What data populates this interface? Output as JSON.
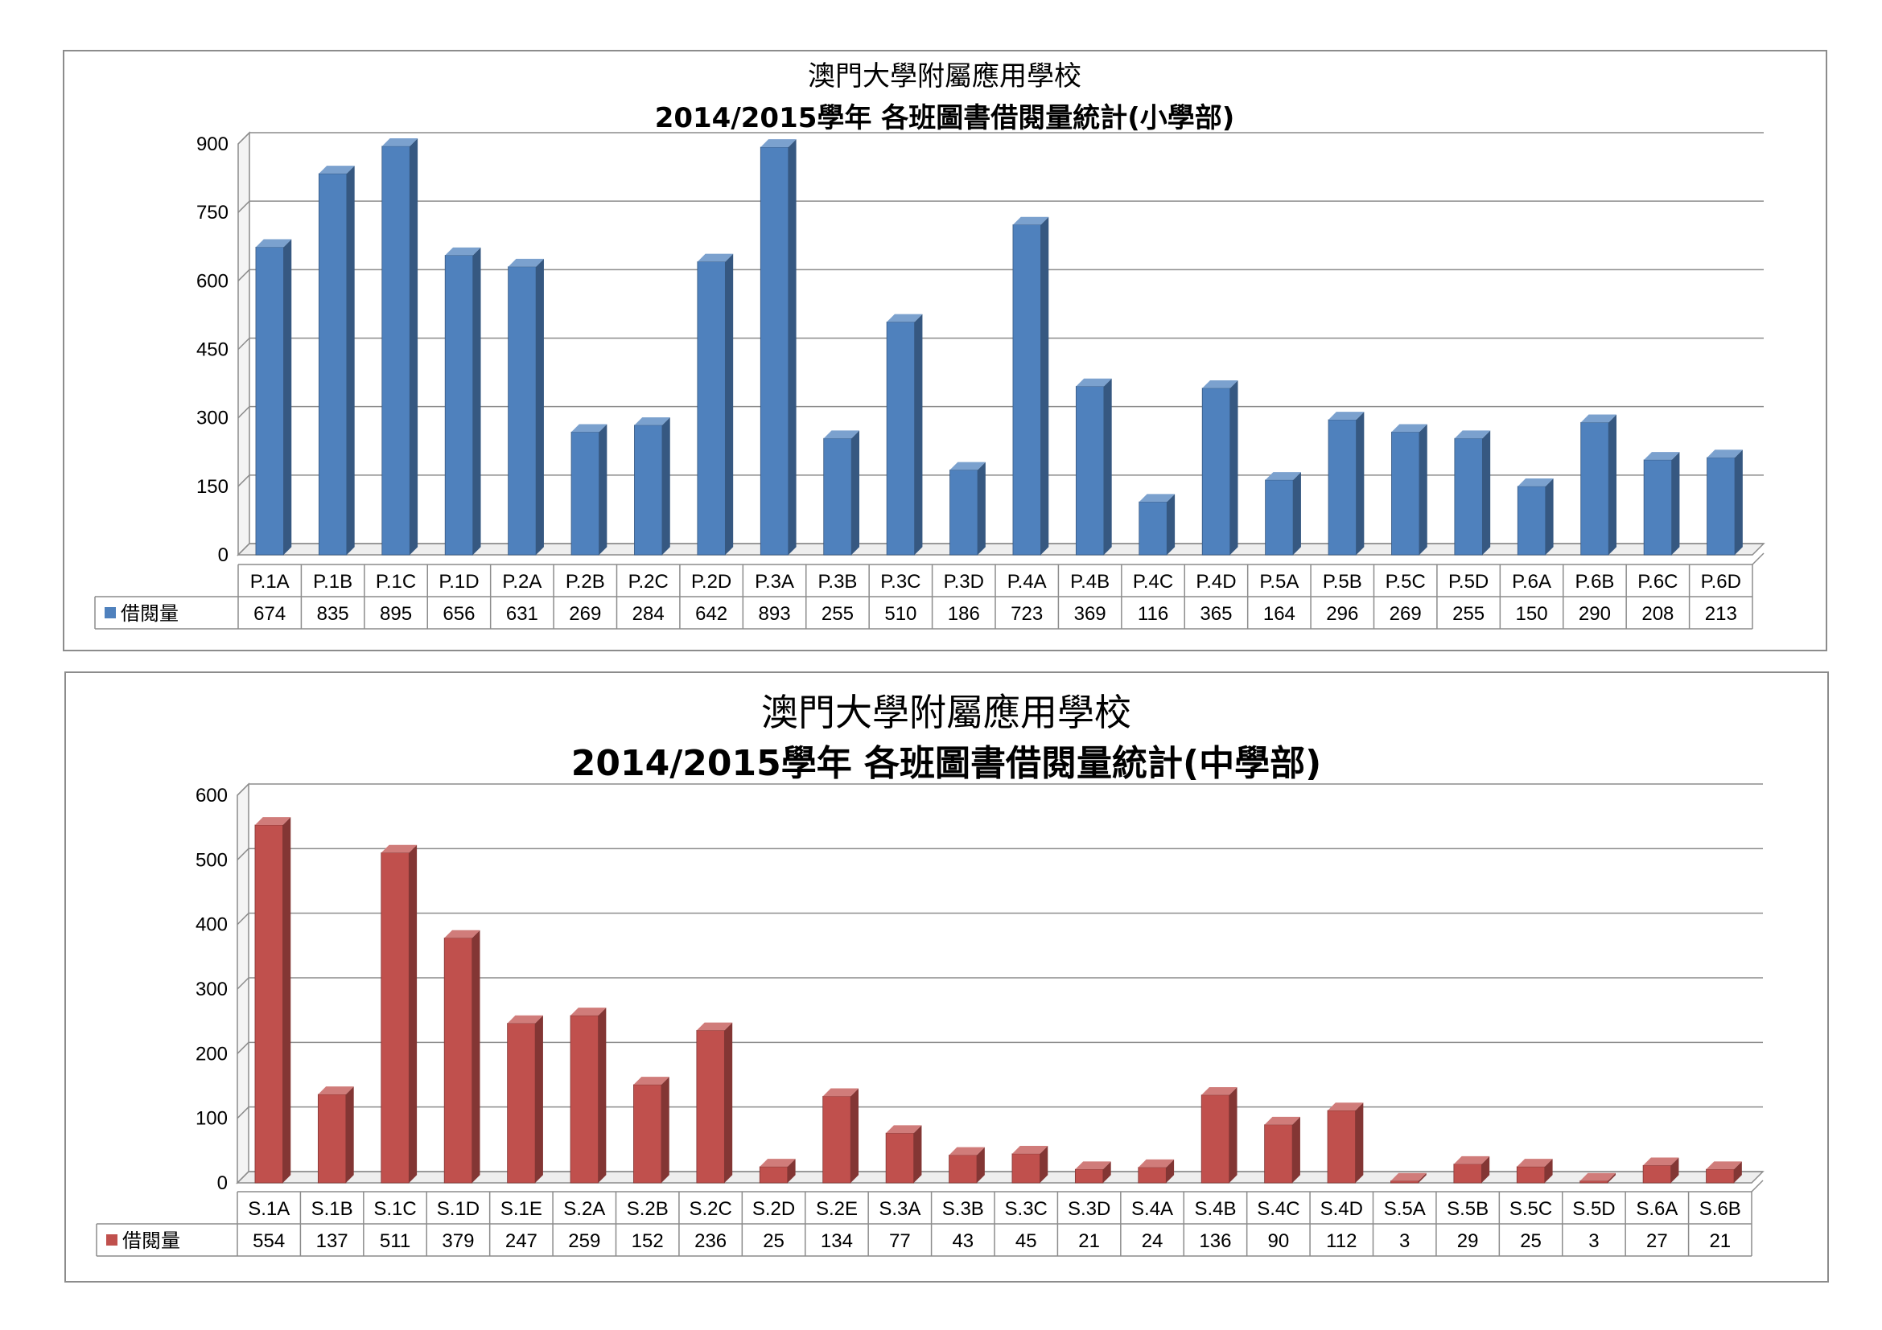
{
  "chart_data": [
    {
      "type": "bar",
      "title_line1": "澳門大學附屬應用學校",
      "title_line2": "2014/2015學年 各班圖書借閱量統計(小學部)",
      "categories": [
        "P.1A",
        "P.1B",
        "P.1C",
        "P.1D",
        "P.2A",
        "P.2B",
        "P.2C",
        "P.2D",
        "P.3A",
        "P.3B",
        "P.3C",
        "P.3D",
        "P.4A",
        "P.4B",
        "P.4C",
        "P.4D",
        "P.5A",
        "P.5B",
        "P.5C",
        "P.5D",
        "P.6A",
        "P.6B",
        "P.6C",
        "P.6D"
      ],
      "series": [
        {
          "name": "借閱量",
          "values": [
            674,
            835,
            895,
            656,
            631,
            269,
            284,
            642,
            893,
            255,
            510,
            186,
            723,
            369,
            116,
            365,
            164,
            296,
            269,
            255,
            150,
            290,
            208,
            213
          ],
          "color": "#4f81bd"
        }
      ],
      "yticks": [
        "0",
        "150",
        "300",
        "450",
        "600",
        "750",
        "900"
      ],
      "ylim": [
        0,
        900
      ],
      "grid": true,
      "data_table": true
    },
    {
      "type": "bar",
      "title_line1": "澳門大學附屬應用學校",
      "title_line2": "2014/2015學年 各班圖書借閱量統計(中學部)",
      "categories": [
        "S.1A",
        "S.1B",
        "S.1C",
        "S.1D",
        "S.1E",
        "S.2A",
        "S.2B",
        "S.2C",
        "S.2D",
        "S.2E",
        "S.3A",
        "S.3B",
        "S.3C",
        "S.3D",
        "S.4A",
        "S.4B",
        "S.4C",
        "S.4D",
        "S.5A",
        "S.5B",
        "S.5C",
        "S.5D",
        "S.6A",
        "S.6B"
      ],
      "series": [
        {
          "name": "借閱量",
          "values": [
            554,
            137,
            511,
            379,
            247,
            259,
            152,
            236,
            25,
            134,
            77,
            43,
            45,
            21,
            24,
            136,
            90,
            112,
            3,
            29,
            25,
            3,
            27,
            21
          ],
          "color": "#c0504d"
        }
      ],
      "yticks": [
        "0",
        "100",
        "200",
        "300",
        "400",
        "500",
        "600"
      ],
      "ylim": [
        0,
        600
      ],
      "grid": true,
      "data_table": true
    }
  ]
}
